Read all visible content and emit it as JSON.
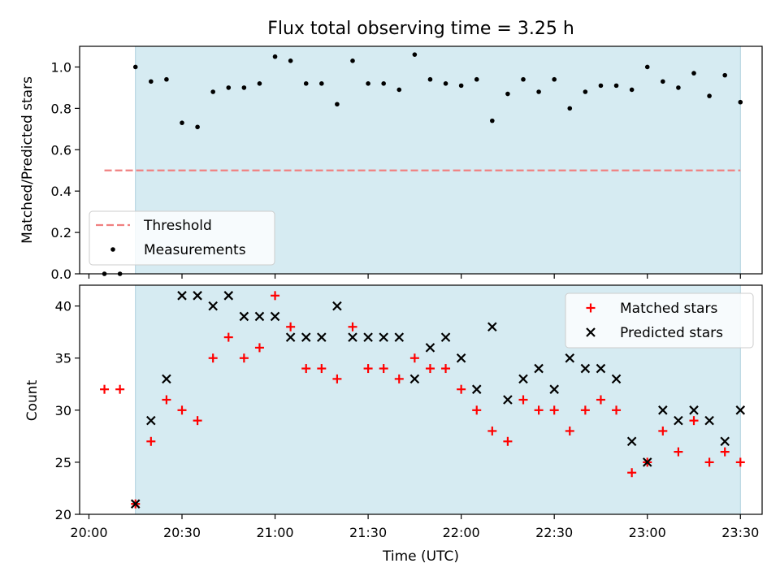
{
  "chart_data": [
    {
      "type": "scatter",
      "title": "Flux total observing time = 3.25 h",
      "xlabel": "",
      "ylabel": "Matched/Predicted stars",
      "xlim": [
        "19:57",
        "23:37"
      ],
      "ylim": [
        0,
        1.1
      ],
      "xticks": [
        "20:00",
        "20:30",
        "21:00",
        "21:30",
        "22:00",
        "22:30",
        "23:00",
        "23:30"
      ],
      "yticks": [
        "0.0",
        "0.2",
        "0.4",
        "0.6",
        "0.8",
        "1.0"
      ],
      "shaded_interval": [
        "20:15",
        "23:30"
      ],
      "threshold": {
        "name": "Threshold",
        "value": 0.5,
        "x_range": [
          "20:05",
          "23:30"
        ],
        "color": "#f08080",
        "style": "dashed"
      },
      "series": [
        {
          "name": "Measurements",
          "marker": "dot",
          "color": "#000000",
          "x": [
            "20:05",
            "20:10",
            "20:15",
            "20:20",
            "20:25",
            "20:30",
            "20:35",
            "20:40",
            "20:45",
            "20:50",
            "20:55",
            "21:00",
            "21:05",
            "21:10",
            "21:15",
            "21:20",
            "21:25",
            "21:30",
            "21:35",
            "21:40",
            "21:45",
            "21:50",
            "21:55",
            "22:00",
            "22:05",
            "22:10",
            "22:15",
            "22:20",
            "22:25",
            "22:30",
            "22:35",
            "22:40",
            "22:45",
            "22:50",
            "22:55",
            "23:00",
            "23:05",
            "23:10",
            "23:15",
            "23:20",
            "23:25",
            "23:30"
          ],
          "y": [
            0.0,
            0.0,
            1.0,
            0.93,
            0.94,
            0.73,
            0.71,
            0.88,
            0.9,
            0.9,
            0.92,
            1.05,
            1.03,
            0.92,
            0.92,
            0.82,
            1.03,
            0.92,
            0.92,
            0.89,
            1.06,
            0.94,
            0.92,
            0.91,
            0.94,
            0.74,
            0.87,
            0.94,
            0.88,
            0.94,
            0.8,
            0.88,
            0.91,
            0.91,
            0.89,
            1.0,
            0.93,
            0.9,
            0.97,
            0.86,
            0.96,
            0.83
          ]
        }
      ],
      "legend": {
        "position": "lower-left",
        "entries": [
          "Threshold",
          "Measurements"
        ]
      },
      "grid": false
    },
    {
      "type": "scatter",
      "title": "",
      "xlabel": "Time (UTC)",
      "ylabel": "Count",
      "xlim": [
        "19:57",
        "23:37"
      ],
      "ylim": [
        20,
        42
      ],
      "xticks": [
        "20:00",
        "20:30",
        "21:00",
        "21:30",
        "22:00",
        "22:30",
        "23:00",
        "23:30"
      ],
      "yticks": [
        "20",
        "25",
        "30",
        "35",
        "40"
      ],
      "shaded_interval": [
        "20:15",
        "23:30"
      ],
      "series": [
        {
          "name": "Matched stars",
          "marker": "plus",
          "color": "#ff0000",
          "x": [
            "20:05",
            "20:10",
            "20:15",
            "20:20",
            "20:25",
            "20:30",
            "20:35",
            "20:40",
            "20:45",
            "20:50",
            "20:55",
            "21:00",
            "21:05",
            "21:10",
            "21:15",
            "21:20",
            "21:25",
            "21:30",
            "21:35",
            "21:40",
            "21:45",
            "21:50",
            "21:55",
            "22:00",
            "22:05",
            "22:10",
            "22:15",
            "22:20",
            "22:25",
            "22:30",
            "22:35",
            "22:40",
            "22:45",
            "22:50",
            "22:55",
            "23:00",
            "23:05",
            "23:10",
            "23:15",
            "23:20",
            "23:25",
            "23:30"
          ],
          "y": [
            32,
            32,
            21,
            27,
            31,
            30,
            29,
            35,
            37,
            35,
            36,
            41,
            38,
            34,
            34,
            33,
            38,
            34,
            34,
            33,
            35,
            34,
            34,
            32,
            30,
            28,
            27,
            31,
            30,
            30,
            28,
            30,
            31,
            30,
            24,
            25,
            28,
            26,
            29,
            25,
            26,
            25
          ]
        },
        {
          "name": "Predicted stars",
          "marker": "x",
          "color": "#000000",
          "x": [
            "20:15",
            "20:20",
            "20:25",
            "20:30",
            "20:35",
            "20:40",
            "20:45",
            "20:50",
            "20:55",
            "21:00",
            "21:05",
            "21:10",
            "21:15",
            "21:20",
            "21:25",
            "21:30",
            "21:35",
            "21:40",
            "21:45",
            "21:50",
            "21:55",
            "22:00",
            "22:05",
            "22:10",
            "22:15",
            "22:20",
            "22:25",
            "22:30",
            "22:35",
            "22:40",
            "22:45",
            "22:50",
            "22:55",
            "23:00",
            "23:05",
            "23:10",
            "23:15",
            "23:20",
            "23:25",
            "23:30"
          ],
          "y": [
            21,
            29,
            33,
            41,
            41,
            40,
            41,
            39,
            39,
            39,
            37,
            37,
            37,
            40,
            37,
            37,
            37,
            37,
            33,
            36,
            37,
            35,
            32,
            38,
            31,
            33,
            34,
            32,
            35,
            34,
            34,
            33,
            27,
            25,
            30,
            29,
            30,
            29,
            27,
            30
          ]
        }
      ],
      "legend": {
        "position": "upper-right",
        "entries": [
          "Matched stars",
          "Predicted stars"
        ]
      },
      "grid": false
    }
  ]
}
